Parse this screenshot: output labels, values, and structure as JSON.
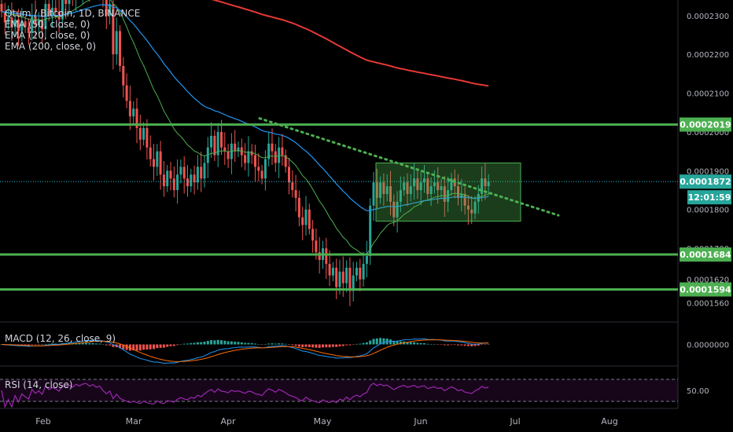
{
  "header": {
    "symbol": "Qtum / Bitcoin, 1D, BINANCE",
    "indicators": [
      "EMA (50, close, 0)",
      "EMA (20, close, 0)",
      "EMA (200, close, 0)"
    ]
  },
  "lower_panes": {
    "macd_label": "MACD (12, 26, close, 9)",
    "rsi_label": "RSI (14, close)"
  },
  "price_tags": {
    "current": "0.0001872",
    "countdown": "12:01:59",
    "resistance": "0.0002019",
    "support_1": "0.0001684",
    "support_2": "0.0001594"
  },
  "colors": {
    "up": "#26a69a",
    "down": "#ef5350",
    "ema200": "#e53935",
    "ema50": "#2196f3",
    "ema20": "#4caf50",
    "level": "#4caf50",
    "rsi": "#9c27b0",
    "current_line": "#26c6da"
  },
  "chart_data": {
    "type": "candlestick",
    "symbol": "QTUMBTC",
    "interval": "1D",
    "exchange": "BINANCE",
    "x_labels": [
      "Feb",
      "Mar",
      "Apr",
      "May",
      "Jun",
      "Jul",
      "Aug"
    ],
    "y_ticks": [
      "0.0002300",
      "0.0002200",
      "0.0002100",
      "0.0002000",
      "0.0001900",
      "0.0001800",
      "0.0001700",
      "0.0001620",
      "0.0001560"
    ],
    "ylim": [
      0.000151,
      0.000234
    ],
    "horizontal_levels": [
      0.0002019,
      0.0001684,
      0.0001594
    ],
    "current_price": 0.0001872,
    "closes": [
      0.000231,
      0.0002282,
      0.0002295,
      0.000227,
      0.000229,
      0.000226,
      0.0002285,
      0.000227,
      0.0002255,
      0.00023,
      0.0002275,
      0.000229,
      0.0002265,
      0.000233,
      0.00023,
      0.000232,
      0.000231,
      0.000229,
      0.000235,
      0.000233,
      0.000236,
      0.000234,
      0.000238,
      0.0002365,
      0.000239,
      0.00024,
      0.0002375,
      0.0002395,
      0.000237,
      0.0002385,
      0.000234,
      0.00023,
      0.000233,
      0.00022,
      0.000226,
      0.000217,
      0.000212,
      0.000208,
      0.000204,
      0.000206,
      0.000201,
      0.000198,
      0.000201,
      0.000196,
      0.000193,
      0.000191,
      0.000195,
      0.000189,
      0.000186,
      0.00019,
      0.000188,
      0.000185,
      0.000189,
      0.000191,
      0.000188,
      0.000186,
      0.000189,
      0.000187,
      0.000191,
      0.000188,
      0.000192,
      0.000196,
      0.000199,
      0.000194,
      0.0002,
      0.000196,
      0.000195,
      0.000193,
      0.000197,
      0.000195,
      0.000196,
      0.000194,
      0.000192,
      0.000195,
      0.000194,
      0.000191,
      0.00019,
      0.000188,
      0.000193,
      0.000197,
      0.000195,
      0.000192,
      0.000196,
      0.000194,
      0.000191,
      0.000187,
      0.000185,
      0.000183,
      0.000178,
      0.000176,
      0.00018,
      0.000175,
      0.000172,
      0.000169,
      0.000167,
      0.00017,
      0.000166,
      0.000163,
      0.000165,
      0.00016,
      0.000164,
      0.000161,
      0.000165,
      0.000159,
      0.000163,
      0.000165,
      0.000162,
      0.000166,
      0.000168,
      0.000181,
      0.000187,
      0.000183,
      0.000187,
      0.000184,
      0.000186,
      0.000182,
      0.000178,
      0.000182,
      0.000185,
      0.000187,
      0.000184,
      0.000186,
      0.000188,
      0.000185,
      0.000187,
      0.000188,
      0.000184,
      0.000186,
      0.000187,
      0.000185,
      0.000186,
      0.000182,
      0.000185,
      0.000188,
      0.000186,
      0.000183,
      0.000184,
      0.000181,
      0.00018,
      0.000179,
      0.000182,
      0.000184,
      0.000188,
      0.000186,
      0.0001872
    ],
    "annotations": {
      "descending_trendline": true,
      "consolidation_box": true
    }
  }
}
